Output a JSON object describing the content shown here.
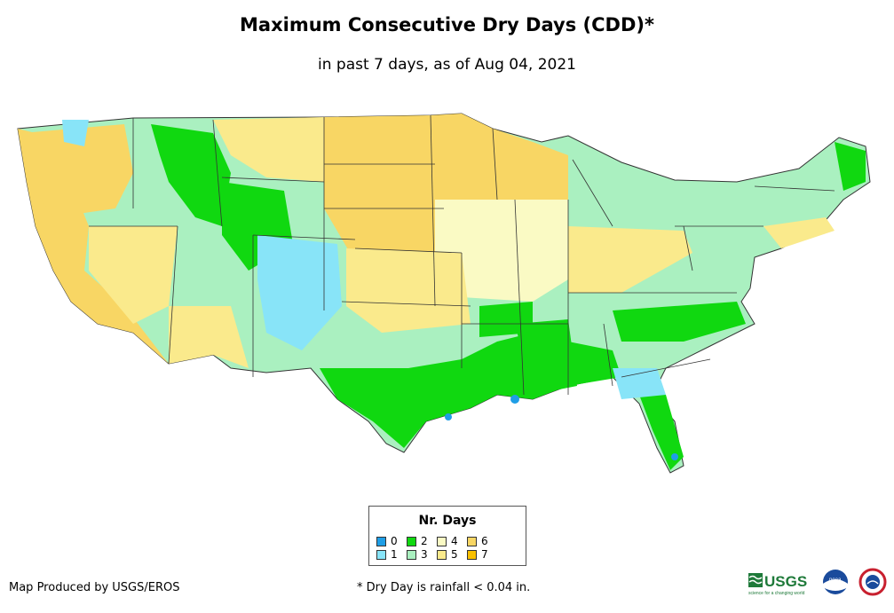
{
  "header": {
    "title": "Maximum Consecutive Dry Days (CDD)*",
    "subtitle": "in past 7 days, as of Aug 04, 2021"
  },
  "legend": {
    "title": "Nr. Days",
    "items": [
      {
        "label": "0",
        "color": "#1f9ee6"
      },
      {
        "label": "1",
        "color": "#88e4f8"
      },
      {
        "label": "2",
        "color": "#10d810"
      },
      {
        "label": "3",
        "color": "#aaf0c0"
      },
      {
        "label": "4",
        "color": "#fafac4"
      },
      {
        "label": "5",
        "color": "#faea8c"
      },
      {
        "label": "6",
        "color": "#f8d664"
      },
      {
        "label": "7",
        "color": "#f8c000"
      }
    ]
  },
  "footer": {
    "credit": "Map Produced by USGS/EROS",
    "note": "* Dry Day is rainfall < 0.04 in.",
    "usgs_logo_text": "USGS",
    "usgs_tagline": "science for a changing world",
    "noaa_logo_text": "noaa"
  },
  "colors": {
    "background": "#ffffff",
    "border": "#333333"
  }
}
